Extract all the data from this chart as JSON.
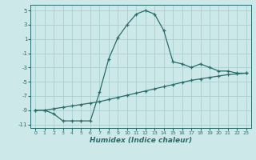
{
  "xlabel": "Humidex (Indice chaleur)",
  "background_color": "#cce8e8",
  "grid_color": "#aacfcf",
  "line_color": "#2a6b6b",
  "curve1_x": [
    0,
    1,
    2,
    3,
    4,
    5,
    6,
    7,
    8,
    9,
    10,
    11,
    12,
    13,
    14,
    15,
    16,
    17,
    18,
    19,
    20,
    21,
    22,
    23
  ],
  "curve1_y": [
    -9.0,
    -9.0,
    -8.8,
    -8.6,
    -8.4,
    -8.2,
    -8.0,
    -7.8,
    -7.5,
    -7.2,
    -6.9,
    -6.6,
    -6.3,
    -6.0,
    -5.7,
    -5.4,
    -5.1,
    -4.8,
    -4.6,
    -4.4,
    -4.2,
    -4.0,
    -3.9,
    -3.8
  ],
  "curve2_x": [
    0,
    1,
    2,
    3,
    4,
    5,
    6,
    7,
    8,
    9,
    10,
    11,
    12,
    13,
    14,
    15,
    16,
    17,
    18,
    19,
    20,
    21,
    22,
    23
  ],
  "curve2_y": [
    -9.0,
    -9.0,
    -9.5,
    -10.5,
    -10.5,
    -10.5,
    -10.5,
    -6.5,
    -1.8,
    1.2,
    3.0,
    4.5,
    5.0,
    4.5,
    2.2,
    -2.2,
    -2.5,
    -3.0,
    -2.5,
    -3.0,
    -3.5,
    -3.5,
    -3.8,
    -3.8
  ],
  "xlim": [
    -0.5,
    23.5
  ],
  "ylim": [
    -11.5,
    5.8
  ],
  "xticks": [
    0,
    1,
    2,
    3,
    4,
    5,
    6,
    7,
    8,
    9,
    10,
    11,
    12,
    13,
    14,
    15,
    16,
    17,
    18,
    19,
    20,
    21,
    22,
    23
  ],
  "yticks": [
    -11,
    -9,
    -7,
    -5,
    -3,
    -1,
    1,
    3,
    5
  ]
}
